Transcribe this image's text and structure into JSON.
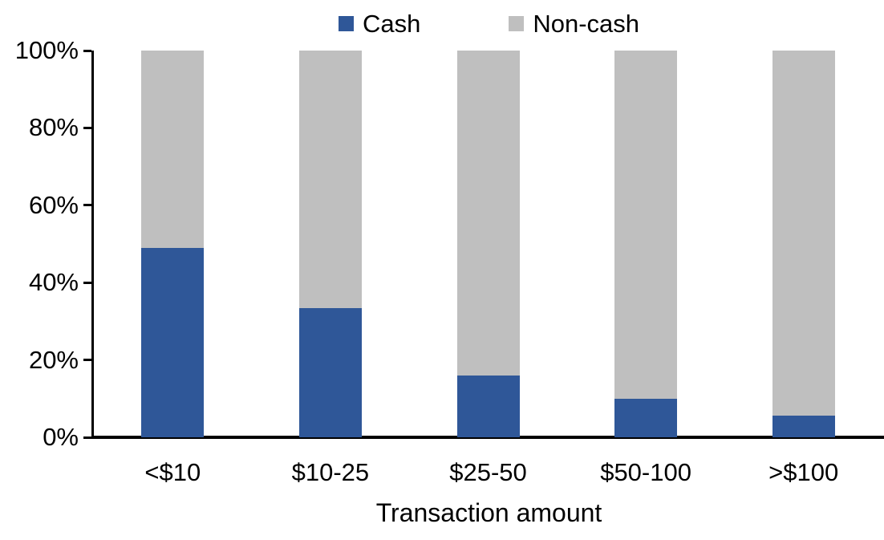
{
  "chart_data": {
    "type": "bar",
    "variant": "stacked-100-percent",
    "title": "",
    "xlabel": "Transaction amount",
    "ylabel": "",
    "categories": [
      "<$10",
      "$10-25",
      "$25-50",
      "$50-100",
      ">$100"
    ],
    "series": [
      {
        "name": "Cash",
        "color": "#2F5798",
        "values": [
          49,
          33.5,
          16,
          10,
          5.5
        ]
      },
      {
        "name": "Non-cash",
        "color": "#BFBFBF",
        "values": [
          51,
          66.5,
          84,
          90,
          94.5
        ]
      }
    ],
    "ylim": [
      0,
      100
    ],
    "yticks": [
      {
        "value": 0,
        "label": "0%"
      },
      {
        "value": 20,
        "label": "20%"
      },
      {
        "value": 40,
        "label": "40%"
      },
      {
        "value": 60,
        "label": "60%"
      },
      {
        "value": 80,
        "label": "80%"
      },
      {
        "value": 100,
        "label": "100%"
      }
    ],
    "legend_position": "top",
    "grid": false,
    "axis_color": "#000000",
    "text_color": "#000000",
    "background_color": "#FFFFFF"
  }
}
